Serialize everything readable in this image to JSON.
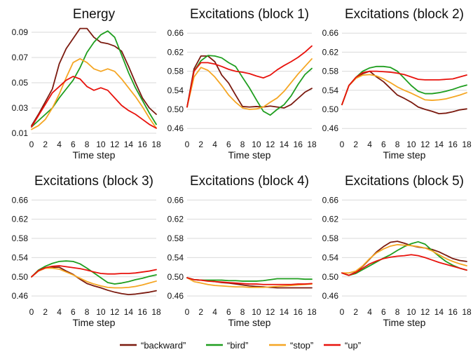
{
  "colors": {
    "backward": "#7b1a0f",
    "bird": "#1f9e1f",
    "stop": "#f5a623",
    "up": "#e8120c"
  },
  "legend": [
    {
      "key": "backward",
      "label": "“backward”"
    },
    {
      "key": "bird",
      "label": "“bird”"
    },
    {
      "key": "stop",
      "label": "“stop”"
    },
    {
      "key": "up",
      "label": "“up”"
    }
  ],
  "chart_data": [
    {
      "type": "line",
      "title": "Energy",
      "xlabel": "Time step",
      "ylabel": "",
      "grid": true,
      "xlim": [
        0,
        18
      ],
      "xticks": [
        0,
        2,
        4,
        6,
        8,
        10,
        12,
        14,
        16,
        18
      ],
      "ylim": [
        0.01,
        0.095
      ],
      "yticks": [
        0.01,
        0.03,
        0.05,
        0.07,
        0.09
      ],
      "ytick_labels": [
        "0.01",
        "0.03",
        "0.05",
        "0.07",
        "0.09"
      ],
      "x": [
        0,
        1,
        2,
        3,
        4,
        5,
        6,
        7,
        8,
        9,
        10,
        11,
        12,
        13,
        14,
        15,
        16,
        17,
        18
      ],
      "series": [
        {
          "name": "“backward”",
          "key": "backward",
          "values": [
            0.016,
            0.025,
            0.035,
            0.045,
            0.065,
            0.077,
            0.085,
            0.093,
            0.093,
            0.086,
            0.082,
            0.081,
            0.079,
            0.075,
            0.063,
            0.05,
            0.038,
            0.03,
            0.025
          ]
        },
        {
          "name": "“bird”",
          "key": "bird",
          "values": [
            0.015,
            0.02,
            0.025,
            0.03,
            0.038,
            0.045,
            0.052,
            0.062,
            0.074,
            0.082,
            0.088,
            0.091,
            0.086,
            0.072,
            0.058,
            0.046,
            0.036,
            0.026,
            0.017
          ]
        },
        {
          "name": "“stop”",
          "key": "stop",
          "values": [
            0.013,
            0.016,
            0.021,
            0.03,
            0.041,
            0.054,
            0.066,
            0.069,
            0.066,
            0.061,
            0.059,
            0.061,
            0.059,
            0.053,
            0.046,
            0.039,
            0.031,
            0.022,
            0.014
          ]
        },
        {
          "name": "“up”",
          "key": "up",
          "values": [
            0.015,
            0.024,
            0.033,
            0.042,
            0.047,
            0.052,
            0.055,
            0.053,
            0.047,
            0.044,
            0.046,
            0.044,
            0.038,
            0.032,
            0.028,
            0.025,
            0.021,
            0.017,
            0.014
          ]
        }
      ]
    },
    {
      "type": "line",
      "title": "Excitations (block 1)",
      "xlabel": "Time step",
      "ylabel": "",
      "grid": true,
      "xlim": [
        0,
        18
      ],
      "xticks": [
        0,
        2,
        4,
        6,
        8,
        10,
        12,
        14,
        16,
        18
      ],
      "ylim": [
        0.45,
        0.675
      ],
      "yticks": [
        0.46,
        0.5,
        0.54,
        0.58,
        0.62,
        0.66
      ],
      "ytick_labels": [
        "0.46",
        "0.50",
        "0.54",
        "0.58",
        "0.62",
        "0.66"
      ],
      "x": [
        0,
        1,
        2,
        3,
        4,
        5,
        6,
        7,
        8,
        9,
        10,
        11,
        12,
        13,
        14,
        15,
        16,
        17,
        18
      ],
      "series": [
        {
          "name": "“backward”",
          "key": "backward",
          "values": [
            0.505,
            0.585,
            0.612,
            0.612,
            0.6,
            0.572,
            0.555,
            0.53,
            0.506,
            0.505,
            0.506,
            0.505,
            0.507,
            0.505,
            0.503,
            0.51,
            0.523,
            0.536,
            0.544
          ]
        },
        {
          "name": "“bird”",
          "key": "bird",
          "values": [
            0.505,
            0.58,
            0.602,
            0.613,
            0.612,
            0.608,
            0.598,
            0.59,
            0.567,
            0.545,
            0.52,
            0.496,
            0.488,
            0.5,
            0.51,
            0.528,
            0.552,
            0.573,
            0.586
          ]
        },
        {
          "name": "“stop”",
          "key": "stop",
          "values": [
            0.505,
            0.568,
            0.588,
            0.582,
            0.568,
            0.55,
            0.53,
            0.515,
            0.503,
            0.5,
            0.501,
            0.505,
            0.515,
            0.524,
            0.538,
            0.556,
            0.574,
            0.59,
            0.606
          ]
        },
        {
          "name": "“up”",
          "key": "up",
          "values": [
            0.505,
            0.58,
            0.598,
            0.598,
            0.595,
            0.59,
            0.584,
            0.58,
            0.578,
            0.575,
            0.57,
            0.566,
            0.572,
            0.583,
            0.592,
            0.6,
            0.609,
            0.62,
            0.633
          ]
        }
      ]
    },
    {
      "type": "line",
      "title": "Excitations (block 2)",
      "xlabel": "Time step",
      "ylabel": "",
      "grid": true,
      "xlim": [
        0,
        18
      ],
      "xticks": [
        0,
        2,
        4,
        6,
        8,
        10,
        12,
        14,
        16,
        18
      ],
      "ylim": [
        0.45,
        0.675
      ],
      "yticks": [
        0.46,
        0.5,
        0.54,
        0.58,
        0.62,
        0.66
      ],
      "ytick_labels": [
        "0.46",
        "0.50",
        "0.54",
        "0.58",
        "0.62",
        "0.66"
      ],
      "x": [
        0,
        1,
        2,
        3,
        4,
        5,
        6,
        7,
        8,
        9,
        10,
        11,
        12,
        13,
        14,
        15,
        16,
        17,
        18
      ],
      "series": [
        {
          "name": "“backward”",
          "key": "backward",
          "values": [
            0.51,
            0.55,
            0.565,
            0.575,
            0.58,
            0.568,
            0.558,
            0.544,
            0.53,
            0.523,
            0.515,
            0.505,
            0.5,
            0.496,
            0.491,
            0.492,
            0.495,
            0.499,
            0.501
          ]
        },
        {
          "name": "“bird”",
          "key": "bird",
          "values": [
            0.51,
            0.55,
            0.567,
            0.58,
            0.587,
            0.59,
            0.59,
            0.588,
            0.58,
            0.565,
            0.55,
            0.538,
            0.533,
            0.533,
            0.535,
            0.538,
            0.542,
            0.547,
            0.551
          ]
        },
        {
          "name": "“stop”",
          "key": "stop",
          "values": [
            0.51,
            0.55,
            0.565,
            0.572,
            0.573,
            0.57,
            0.564,
            0.556,
            0.547,
            0.54,
            0.534,
            0.527,
            0.52,
            0.519,
            0.52,
            0.522,
            0.526,
            0.53,
            0.535
          ]
        },
        {
          "name": "“up”",
          "key": "up",
          "values": [
            0.51,
            0.55,
            0.567,
            0.577,
            0.58,
            0.58,
            0.579,
            0.578,
            0.576,
            0.573,
            0.568,
            0.563,
            0.562,
            0.562,
            0.562,
            0.563,
            0.564,
            0.568,
            0.572
          ]
        }
      ]
    },
    {
      "type": "line",
      "title": "Excitations (block 3)",
      "xlabel": "Time step",
      "ylabel": "",
      "grid": true,
      "xlim": [
        0,
        18
      ],
      "xticks": [
        0,
        2,
        4,
        6,
        8,
        10,
        12,
        14,
        16,
        18
      ],
      "ylim": [
        0.45,
        0.675
      ],
      "yticks": [
        0.46,
        0.5,
        0.54,
        0.58,
        0.62,
        0.66
      ],
      "ytick_labels": [
        "0.46",
        "0.50",
        "0.54",
        "0.58",
        "0.62",
        "0.66"
      ],
      "x": [
        0,
        1,
        2,
        3,
        4,
        5,
        6,
        7,
        8,
        9,
        10,
        11,
        12,
        13,
        14,
        15,
        16,
        17,
        18
      ],
      "series": [
        {
          "name": "“backward”",
          "key": "backward",
          "values": [
            0.5,
            0.512,
            0.518,
            0.52,
            0.52,
            0.512,
            0.505,
            0.495,
            0.486,
            0.481,
            0.477,
            0.472,
            0.468,
            0.465,
            0.463,
            0.464,
            0.466,
            0.468,
            0.471
          ]
        },
        {
          "name": "“bird”",
          "key": "bird",
          "values": [
            0.5,
            0.514,
            0.522,
            0.528,
            0.532,
            0.533,
            0.532,
            0.527,
            0.518,
            0.508,
            0.498,
            0.488,
            0.485,
            0.487,
            0.49,
            0.494,
            0.497,
            0.501,
            0.504
          ]
        },
        {
          "name": "“stop”",
          "key": "stop",
          "values": [
            0.5,
            0.512,
            0.518,
            0.518,
            0.516,
            0.51,
            0.504,
            0.497,
            0.49,
            0.485,
            0.481,
            0.478,
            0.477,
            0.477,
            0.478,
            0.48,
            0.483,
            0.487,
            0.491
          ]
        },
        {
          "name": "“up”",
          "key": "up",
          "values": [
            0.5,
            0.513,
            0.519,
            0.522,
            0.523,
            0.521,
            0.519,
            0.517,
            0.514,
            0.51,
            0.507,
            0.506,
            0.506,
            0.507,
            0.507,
            0.508,
            0.51,
            0.512,
            0.515
          ]
        }
      ]
    },
    {
      "type": "line",
      "title": "Excitations (block 4)",
      "xlabel": "Time step",
      "ylabel": "",
      "grid": true,
      "xlim": [
        0,
        18
      ],
      "xticks": [
        0,
        2,
        4,
        6,
        8,
        10,
        12,
        14,
        16,
        18
      ],
      "ylim": [
        0.45,
        0.675
      ],
      "yticks": [
        0.46,
        0.5,
        0.54,
        0.58,
        0.62,
        0.66
      ],
      "ytick_labels": [
        "0.46",
        "0.50",
        "0.54",
        "0.58",
        "0.62",
        "0.66"
      ],
      "x": [
        0,
        1,
        2,
        3,
        4,
        5,
        6,
        7,
        8,
        9,
        10,
        11,
        12,
        13,
        14,
        15,
        16,
        17,
        18
      ],
      "series": [
        {
          "name": "“backward”",
          "key": "backward",
          "values": [
            0.498,
            0.494,
            0.493,
            0.492,
            0.49,
            0.488,
            0.487,
            0.485,
            0.483,
            0.481,
            0.48,
            0.479,
            0.478,
            0.477,
            0.477,
            0.477,
            0.477,
            0.477,
            0.477
          ]
        },
        {
          "name": "“bird”",
          "key": "bird",
          "values": [
            0.498,
            0.494,
            0.493,
            0.493,
            0.493,
            0.493,
            0.492,
            0.492,
            0.491,
            0.491,
            0.491,
            0.492,
            0.494,
            0.496,
            0.496,
            0.496,
            0.496,
            0.495,
            0.495
          ]
        },
        {
          "name": "“stop”",
          "key": "stop",
          "values": [
            0.498,
            0.49,
            0.487,
            0.484,
            0.482,
            0.481,
            0.48,
            0.479,
            0.479,
            0.478,
            0.478,
            0.478,
            0.479,
            0.48,
            0.481,
            0.482,
            0.483,
            0.484,
            0.485
          ]
        },
        {
          "name": "“up”",
          "key": "up",
          "values": [
            0.498,
            0.494,
            0.493,
            0.491,
            0.49,
            0.489,
            0.488,
            0.487,
            0.486,
            0.485,
            0.485,
            0.484,
            0.484,
            0.484,
            0.484,
            0.484,
            0.485,
            0.485,
            0.486
          ]
        }
      ]
    },
    {
      "type": "line",
      "title": "Excitations (block 5)",
      "xlabel": "Time step",
      "ylabel": "",
      "grid": true,
      "xlim": [
        0,
        18
      ],
      "xticks": [
        0,
        2,
        4,
        6,
        8,
        10,
        12,
        14,
        16,
        18
      ],
      "ylim": [
        0.45,
        0.675
      ],
      "yticks": [
        0.46,
        0.5,
        0.54,
        0.58,
        0.62,
        0.66
      ],
      "ytick_labels": [
        "0.46",
        "0.50",
        "0.54",
        "0.58",
        "0.62",
        "0.66"
      ],
      "x": [
        0,
        1,
        2,
        3,
        4,
        5,
        6,
        7,
        8,
        9,
        10,
        11,
        12,
        13,
        14,
        15,
        16,
        17,
        18
      ],
      "series": [
        {
          "name": "“backward”",
          "key": "backward",
          "values": [
            0.508,
            0.503,
            0.51,
            0.522,
            0.537,
            0.552,
            0.563,
            0.572,
            0.574,
            0.57,
            0.565,
            0.562,
            0.56,
            0.557,
            0.552,
            0.545,
            0.538,
            0.534,
            0.532
          ]
        },
        {
          "name": "“bird”",
          "key": "bird",
          "values": [
            0.508,
            0.503,
            0.507,
            0.515,
            0.523,
            0.531,
            0.539,
            0.546,
            0.555,
            0.563,
            0.569,
            0.573,
            0.568,
            0.555,
            0.543,
            0.532,
            0.524,
            0.518,
            0.514
          ]
        },
        {
          "name": "“stop”",
          "key": "stop",
          "values": [
            0.508,
            0.508,
            0.512,
            0.523,
            0.538,
            0.55,
            0.558,
            0.564,
            0.567,
            0.566,
            0.565,
            0.563,
            0.56,
            0.554,
            0.546,
            0.538,
            0.532,
            0.527,
            0.523
          ]
        },
        {
          "name": "“up”",
          "key": "up",
          "values": [
            0.508,
            0.503,
            0.509,
            0.518,
            0.527,
            0.533,
            0.538,
            0.541,
            0.543,
            0.544,
            0.546,
            0.544,
            0.54,
            0.535,
            0.53,
            0.526,
            0.522,
            0.518,
            0.514
          ]
        }
      ]
    }
  ]
}
